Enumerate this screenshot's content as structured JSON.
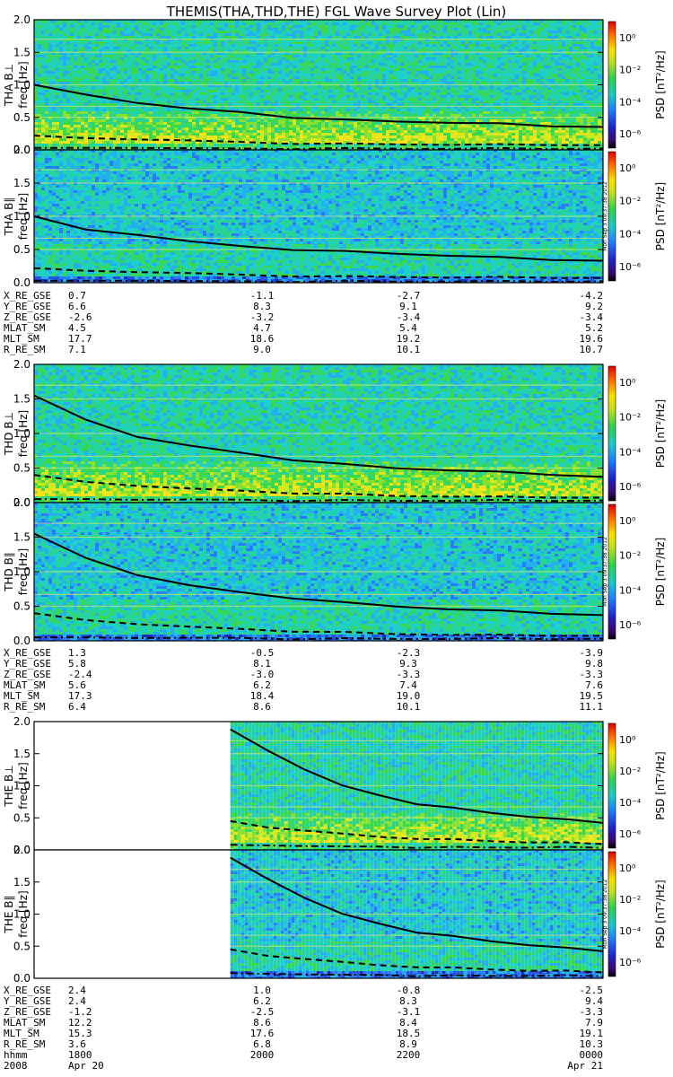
{
  "title": "THEMIS(THA,THD,THE) FGL Wave Survey Plot (Lin)",
  "colorbar": {
    "label": "PSD [nT²/Hz]",
    "ticks": [
      "10⁰",
      "10⁻²",
      "10⁻⁴",
      "10⁻⁶"
    ]
  },
  "side_stamp": "Mon Sep 3 09:37:38 2012",
  "freq_axis": {
    "label": "freq [Hz]",
    "ticks": [
      "2.0",
      "1.5",
      "1.0",
      "0.5",
      "0.0"
    ],
    "ylim": [
      0,
      2
    ]
  },
  "chart_data": [
    {
      "type": "heatmap",
      "probe": "THA",
      "component": "THA B⊥",
      "ylabel": "freq [Hz]",
      "ylim": [
        0,
        2
      ],
      "data_start_frac": 0,
      "curves": {
        "solid": [
          1.0,
          0.85,
          0.72,
          0.63,
          0.58,
          0.5,
          0.46,
          0.44,
          0.42,
          0.4,
          0.37,
          0.35
        ],
        "dashed": [
          0.22,
          0.18,
          0.16,
          0.14,
          0.12,
          0.1,
          0.09,
          0.09,
          0.08,
          0.08,
          0.08,
          0.07
        ],
        "dashdot": [
          0.03,
          0.03,
          0.03,
          0.02,
          0.02,
          0.02,
          0.02,
          0.02,
          0.02,
          0.02,
          0.02,
          0.02
        ]
      }
    },
    {
      "type": "heatmap",
      "probe": "THA",
      "component": "THA B∥",
      "ylabel": "freq [Hz]",
      "ylim": [
        0,
        2
      ],
      "data_start_frac": 0,
      "curves": {
        "solid": [
          1.0,
          0.8,
          0.72,
          0.62,
          0.55,
          0.5,
          0.47,
          0.44,
          0.41,
          0.38,
          0.35,
          0.33
        ],
        "dashed": [
          0.22,
          0.18,
          0.16,
          0.14,
          0.12,
          0.1,
          0.09,
          0.09,
          0.08,
          0.08,
          0.08,
          0.07
        ],
        "dashdot": [
          0.03,
          0.03,
          0.03,
          0.02,
          0.02,
          0.02,
          0.02,
          0.02,
          0.02,
          0.02,
          0.02,
          0.02
        ]
      }
    },
    {
      "type": "heatmap",
      "probe": "THD",
      "component": "THD B⊥",
      "ylabel": "freq [Hz]",
      "ylim": [
        0,
        2
      ],
      "data_start_frac": 0,
      "curves": {
        "solid": [
          1.55,
          1.2,
          0.95,
          0.82,
          0.72,
          0.62,
          0.55,
          0.5,
          0.47,
          0.44,
          0.41,
          0.37
        ],
        "dashed": [
          0.4,
          0.3,
          0.24,
          0.2,
          0.17,
          0.14,
          0.12,
          0.1,
          0.09,
          0.08,
          0.08,
          0.07
        ],
        "dashdot": [
          0.05,
          0.05,
          0.04,
          0.04,
          0.04,
          0.03,
          0.03,
          0.03,
          0.03,
          0.03,
          0.03,
          0.03
        ]
      }
    },
    {
      "type": "heatmap",
      "probe": "THD",
      "component": "THD B∥",
      "ylabel": "freq [Hz]",
      "ylim": [
        0,
        2
      ],
      "data_start_frac": 0,
      "curves": {
        "solid": [
          1.55,
          1.2,
          0.95,
          0.8,
          0.7,
          0.62,
          0.55,
          0.5,
          0.46,
          0.43,
          0.4,
          0.37
        ],
        "dashed": [
          0.4,
          0.3,
          0.24,
          0.2,
          0.17,
          0.14,
          0.12,
          0.1,
          0.09,
          0.08,
          0.08,
          0.07
        ],
        "dashdot": [
          0.05,
          0.05,
          0.04,
          0.04,
          0.04,
          0.03,
          0.03,
          0.03,
          0.03,
          0.03,
          0.03,
          0.03
        ]
      }
    },
    {
      "type": "heatmap",
      "probe": "THE",
      "component": "THE B⊥",
      "ylabel": "freq [Hz]",
      "ylim": [
        0,
        2
      ],
      "data_start_frac": 0.345,
      "curves": {
        "solid": [
          1.88,
          1.55,
          1.25,
          1.0,
          0.85,
          0.72,
          0.65,
          0.58,
          0.52,
          0.47,
          0.43
        ],
        "dashed": [
          0.45,
          0.35,
          0.3,
          0.25,
          0.2,
          0.18,
          0.16,
          0.14,
          0.12,
          0.11,
          0.1
        ],
        "dashdot": [
          0.08,
          0.07,
          0.06,
          0.05,
          0.05,
          0.04,
          0.04,
          0.04,
          0.04,
          0.04,
          0.04
        ]
      }
    },
    {
      "type": "heatmap",
      "probe": "THE",
      "component": "THE B∥",
      "ylabel": "freq [Hz]",
      "ylim": [
        0,
        2
      ],
      "data_start_frac": 0.345,
      "curves": {
        "solid": [
          1.88,
          1.55,
          1.25,
          1.0,
          0.85,
          0.72,
          0.65,
          0.58,
          0.52,
          0.47,
          0.43
        ],
        "dashed": [
          0.45,
          0.35,
          0.3,
          0.25,
          0.2,
          0.18,
          0.16,
          0.14,
          0.12,
          0.11,
          0.1
        ],
        "dashdot": [
          0.08,
          0.07,
          0.06,
          0.05,
          0.05,
          0.04,
          0.04,
          0.04,
          0.04,
          0.04,
          0.04
        ]
      }
    }
  ],
  "ephemeris": [
    {
      "probe": "THA",
      "rows": [
        {
          "label": "X_RE_GSE",
          "values": [
            "0.7",
            "-1.1",
            "-2.7",
            "-4.2"
          ]
        },
        {
          "label": "Y_RE_GSE",
          "values": [
            "6.6",
            "8.3",
            "9.1",
            "9.2"
          ]
        },
        {
          "label": "Z_RE_GSE",
          "values": [
            "-2.6",
            "-3.2",
            "-3.4",
            "-3.4"
          ]
        },
        {
          "label": "MLAT_SM",
          "values": [
            "4.5",
            "4.7",
            "5.4",
            "5.2"
          ]
        },
        {
          "label": "MLT_SM",
          "values": [
            "17.7",
            "18.6",
            "19.2",
            "19.6"
          ]
        },
        {
          "label": "R_RE_SM",
          "values": [
            "7.1",
            "9.0",
            "10.1",
            "10.7"
          ]
        }
      ]
    },
    {
      "probe": "THD",
      "rows": [
        {
          "label": "X_RE_GSE",
          "values": [
            "1.3",
            "-0.5",
            "-2.3",
            "-3.9"
          ]
        },
        {
          "label": "Y_RE_GSE",
          "values": [
            "5.8",
            "8.1",
            "9.3",
            "9.8"
          ]
        },
        {
          "label": "Z_RE_GSE",
          "values": [
            "-2.4",
            "-3.0",
            "-3.3",
            "-3.3"
          ]
        },
        {
          "label": "MLAT_SM",
          "values": [
            "5.6",
            "6.2",
            "7.4",
            "7.6"
          ]
        },
        {
          "label": "MLT_SM",
          "values": [
            "17.3",
            "18.4",
            "19.0",
            "19.5"
          ]
        },
        {
          "label": "R_RE_SM",
          "values": [
            "6.4",
            "8.6",
            "10.1",
            "11.1"
          ]
        }
      ]
    },
    {
      "probe": "THE",
      "rows": [
        {
          "label": "X_RE_GSE",
          "values": [
            "2.4",
            "1.0",
            "-0.8",
            "-2.5"
          ]
        },
        {
          "label": "Y_RE_GSE",
          "values": [
            "2.4",
            "6.2",
            "8.3",
            "9.4"
          ]
        },
        {
          "label": "Z_RE_GSE",
          "values": [
            "-1.2",
            "-2.5",
            "-3.1",
            "-3.3"
          ]
        },
        {
          "label": "MLAT_SM",
          "values": [
            "12.2",
            "8.6",
            "8.4",
            "7.9"
          ]
        },
        {
          "label": "MLT_SM",
          "values": [
            "15.3",
            "17.6",
            "18.5",
            "19.1"
          ]
        },
        {
          "label": "R_RE_SM",
          "values": [
            "3.6",
            "6.8",
            "8.9",
            "10.3"
          ]
        },
        {
          "label": "hhmm",
          "values": [
            "1800",
            "2000",
            "2200",
            "0000"
          ]
        }
      ]
    }
  ],
  "date_row": {
    "year": "2008",
    "start": "Apr 20",
    "end": "Apr 21"
  }
}
